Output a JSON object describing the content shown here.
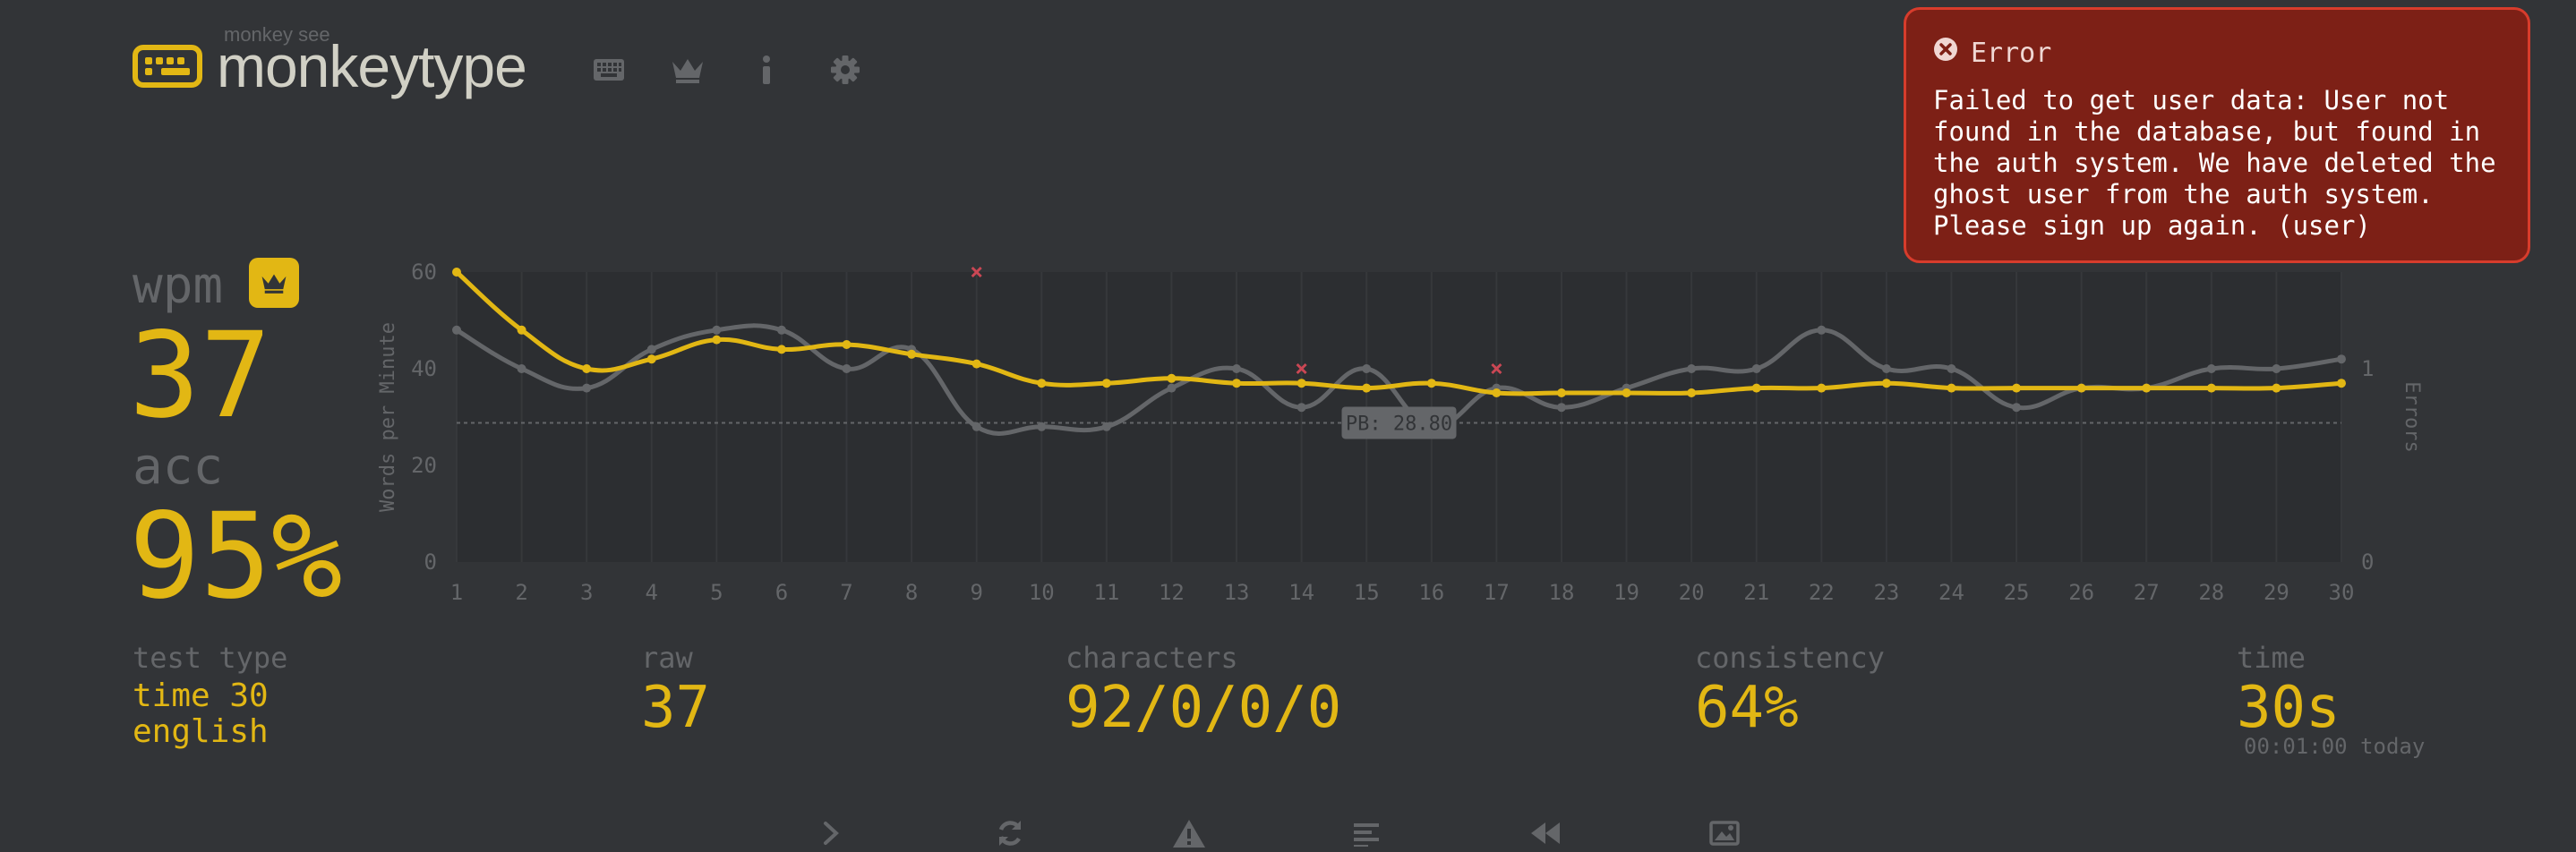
{
  "header": {
    "logo_small": "monkey see",
    "logo_text": "monkeytype",
    "nav": [
      {
        "name": "keyboard-icon"
      },
      {
        "name": "crown-icon"
      },
      {
        "name": "info-icon"
      },
      {
        "name": "gear-icon"
      }
    ]
  },
  "stats": {
    "wpm_label": "wpm",
    "wpm_value": "37",
    "acc_label": "acc",
    "acc_value": "95%"
  },
  "details": {
    "test_type_label": "test type",
    "test_type_line1": "time 30",
    "test_type_line2": "english",
    "raw_label": "raw",
    "raw_value": "37",
    "characters_label": "characters",
    "characters_value": "92/0/0/0",
    "consistency_label": "consistency",
    "consistency_value": "64%",
    "time_label": "time",
    "time_value": "30s",
    "time_sub": "00:01:00 today"
  },
  "toast": {
    "title": "Error",
    "message": "Failed to get user data: User not found in the database, but found in the auth system. We have deleted the ghost user from the auth system. Please sign up again. (user)"
  },
  "chart_data": {
    "type": "line",
    "x": [
      1,
      2,
      3,
      4,
      5,
      6,
      7,
      8,
      9,
      10,
      11,
      12,
      13,
      14,
      15,
      16,
      17,
      18,
      19,
      20,
      21,
      22,
      23,
      24,
      25,
      26,
      27,
      28,
      29,
      30
    ],
    "ylabel": "Words per Minute",
    "y2label": "Errors",
    "ylim": [
      0,
      60
    ],
    "yticks": [
      0,
      20,
      40,
      60
    ],
    "y2lim": [
      0,
      1.5
    ],
    "y2ticks": [
      0,
      1
    ],
    "pb_label": "PB: 28.80",
    "pb_value": 28.8,
    "series": [
      {
        "role": "wpm",
        "color": "#e2b714",
        "values": [
          60,
          48,
          40,
          42,
          46,
          44,
          45,
          43,
          41,
          37,
          37,
          38,
          37,
          37,
          36,
          37,
          35,
          35,
          35,
          35,
          36,
          36,
          37,
          36,
          36,
          36,
          36,
          36,
          36,
          37
        ]
      },
      {
        "role": "raw",
        "color": "#646669",
        "values": [
          48,
          40,
          36,
          44,
          48,
          48,
          40,
          44,
          28,
          28,
          28,
          36,
          40,
          32,
          40,
          28,
          36,
          32,
          36,
          40,
          40,
          48,
          40,
          40,
          32,
          36,
          36,
          40,
          40,
          42
        ]
      }
    ],
    "errors": [
      {
        "x": 9,
        "count": 1.5
      },
      {
        "x": 14,
        "count": 1
      },
      {
        "x": 17,
        "count": 1
      }
    ]
  },
  "bottom_buttons": [
    {
      "name": "next-test-icon"
    },
    {
      "name": "restart-test-icon"
    },
    {
      "name": "warning-icon"
    },
    {
      "name": "words-history-icon"
    },
    {
      "name": "watch-replay-icon"
    },
    {
      "name": "screenshot-icon"
    }
  ]
}
